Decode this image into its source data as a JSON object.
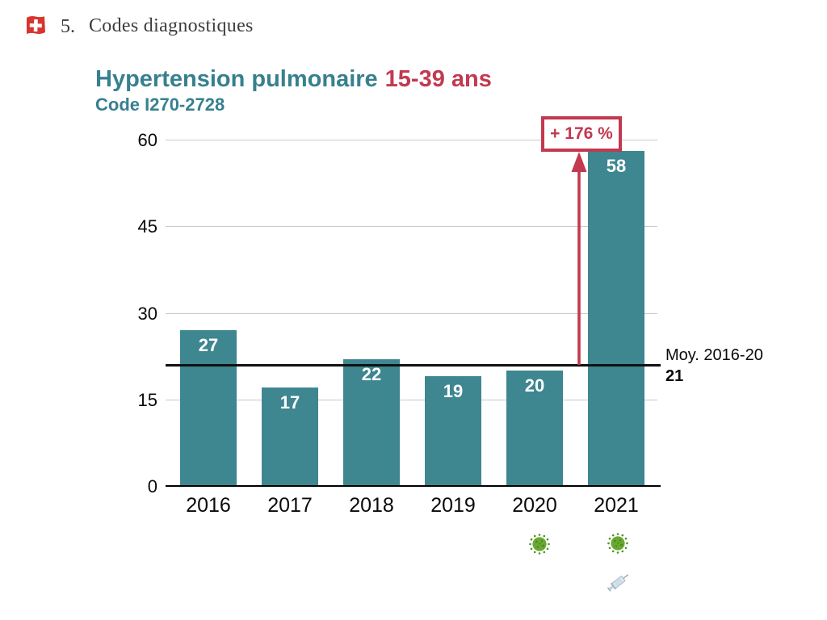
{
  "header": {
    "number": "5.",
    "label": "Codes diagnostiques"
  },
  "title": {
    "main": "Hypertension pulmonaire",
    "accent": "15-39 ans",
    "subtitle": "Code I270-2728"
  },
  "annotation": {
    "label": "+ 176 %"
  },
  "reference": {
    "label": "Moy. 2016-20",
    "value": "21"
  },
  "colors": {
    "bar_teal": "#3E8690",
    "title_teal": "#37808F",
    "accent_red": "#C23950",
    "grid_gray": "#C9C9C9",
    "axis_black": "#000000"
  },
  "icons": {
    "flag": "swiss-flag-icon",
    "year_2020_marker": "microbe-icon",
    "year_2021_markers": [
      "microbe-icon",
      "syringe-icon"
    ]
  },
  "chart_data": {
    "type": "bar",
    "title": "Hypertension pulmonaire 15-39 ans",
    "subtitle": "Code I270-2728",
    "categories": [
      "2016",
      "2017",
      "2018",
      "2019",
      "2020",
      "2021"
    ],
    "values": [
      27,
      17,
      22,
      19,
      20,
      58
    ],
    "xlabel": "",
    "ylabel": "",
    "ylim": [
      0,
      60
    ],
    "yticks": [
      0,
      15,
      30,
      45,
      60
    ],
    "grid": true,
    "bar_color": "#3E8690",
    "value_labels": [
      27,
      17,
      22,
      19,
      20,
      58
    ],
    "reference_line": {
      "value": 21,
      "label": "Moy. 2016-20",
      "value_label": "21"
    },
    "annotation": {
      "text": "+ 176 %",
      "applies_to": "2021",
      "arrow_from_value": 21,
      "arrow_to_value": 58
    }
  }
}
